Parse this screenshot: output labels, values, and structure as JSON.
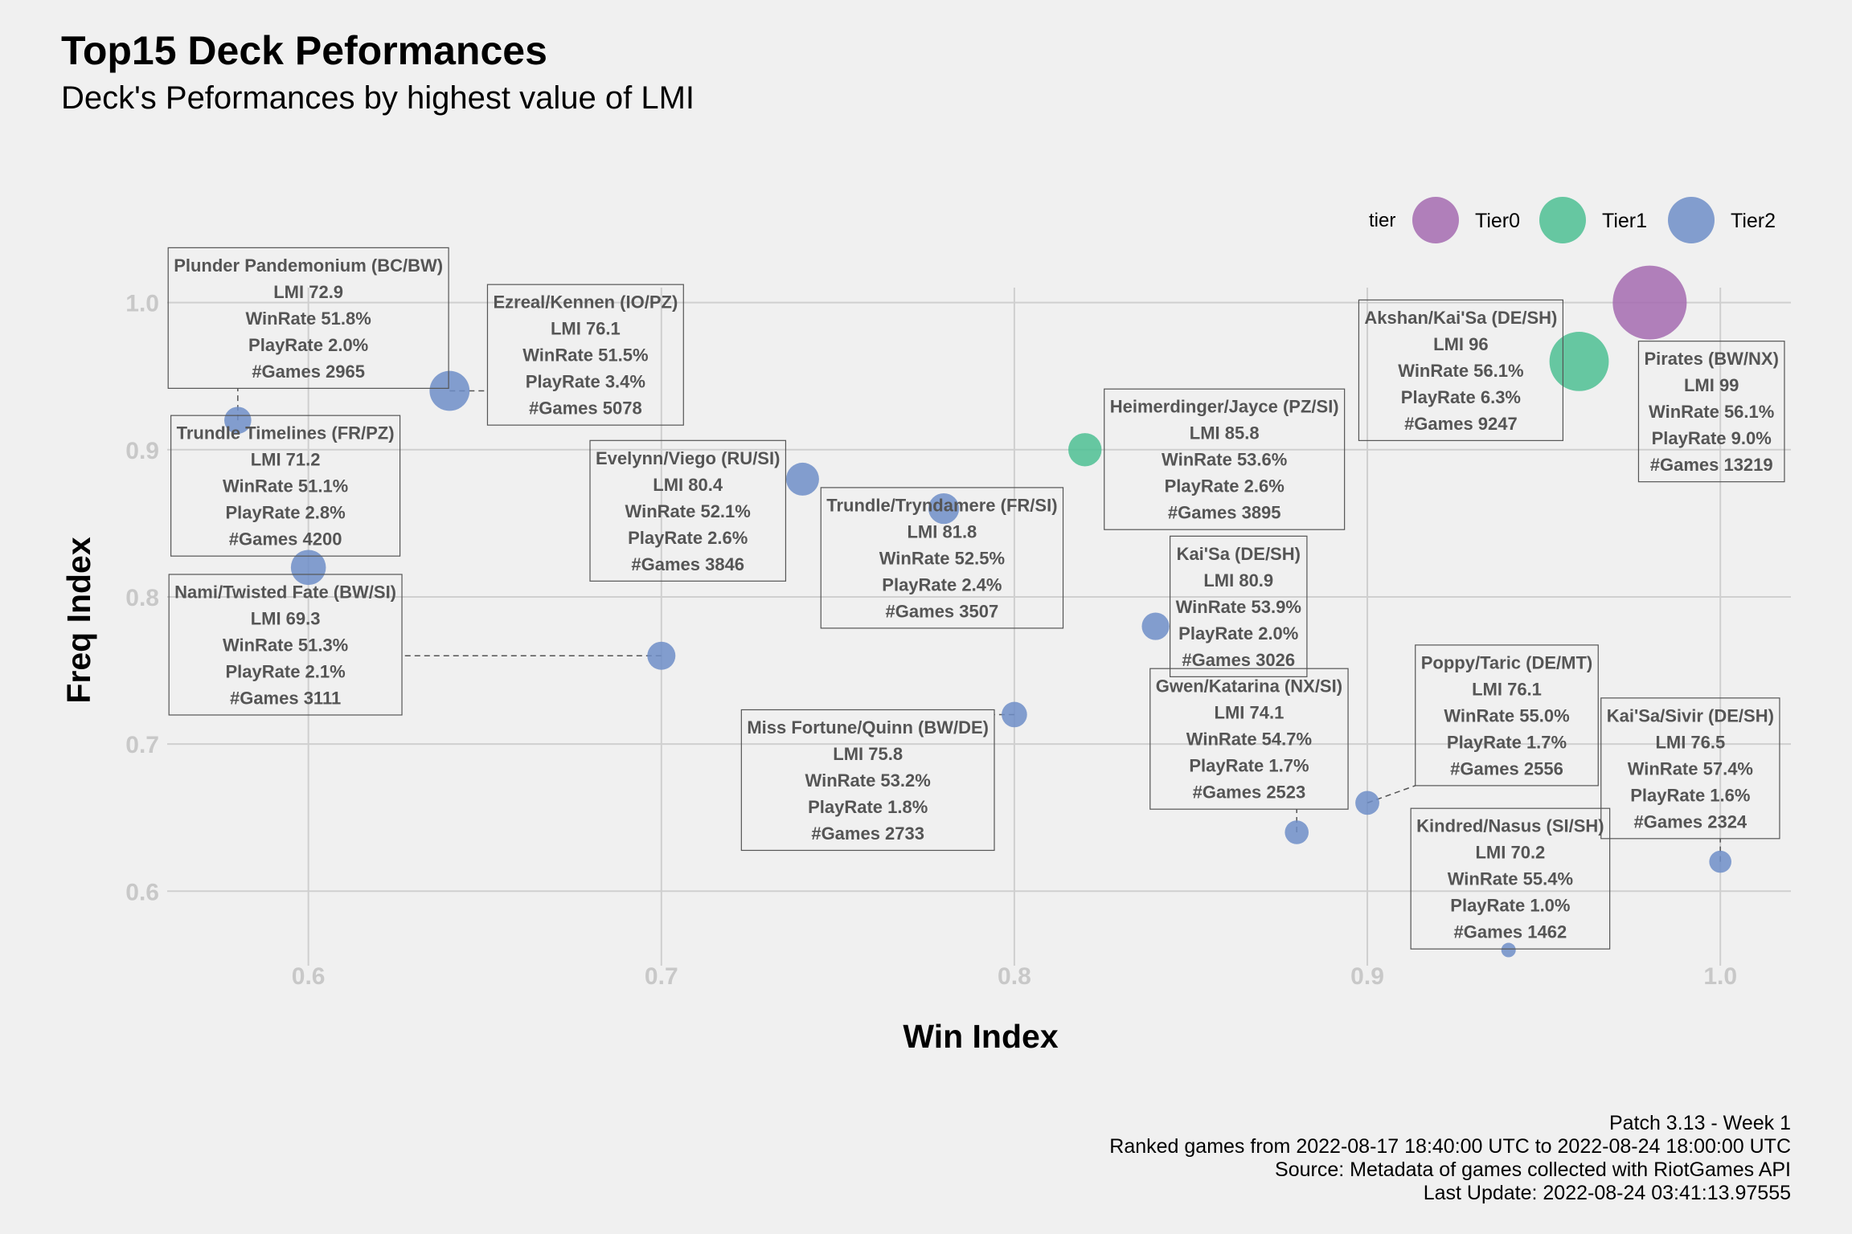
{
  "header": {
    "title": "Top15 Deck Peformances",
    "subtitle": "Deck's Peformances by highest value of LMI"
  },
  "caption": {
    "line1": "Patch 3.13 - Week 1",
    "line2": "Ranked games from 2022-08-17 18:40:00 UTC to 2022-08-24 18:00:00 UTC",
    "line3": "Source: Metadata of games collected with RiotGames API",
    "line4": "Last Update: 2022-08-24 03:41:13.97555"
  },
  "colors": {
    "Tier0": "#a46bb0",
    "Tier1": "#4dbf93",
    "Tier2": "#6e8ec8",
    "background": "#f0f0f0",
    "grid": "#cfcfcf"
  },
  "chart_data": {
    "type": "scatter",
    "title": "Top15 Deck Peformances",
    "subtitle": "Deck's Peformances by highest value of LMI",
    "xlabel": "Win Index",
    "ylabel": "Freq Index",
    "xlim": [
      0.56,
      1.02
    ],
    "ylim": [
      0.545,
      1.02
    ],
    "x_ticks": [
      0.6,
      0.7,
      0.8,
      0.9,
      1.0
    ],
    "x_tick_labels": [
      "0.6",
      "0.7",
      "0.8",
      "0.9",
      "1.0"
    ],
    "y_ticks": [
      0.6,
      0.7,
      0.8,
      0.9,
      1.0
    ],
    "y_tick_labels": [
      "0.6",
      "0.7",
      "0.8",
      "0.9",
      "1.0"
    ],
    "grid": true,
    "size_variable": "#Games",
    "legend": {
      "title": "tier",
      "position": "top-right",
      "entries": [
        "Tier0",
        "Tier1",
        "Tier2"
      ]
    },
    "points": [
      {
        "deck": "Pirates (BW/NX)",
        "x": 0.98,
        "y": 1.0,
        "tier": "Tier0",
        "lmi": "99",
        "winrate": "56.1%",
        "playrate": "9.0%",
        "games": "13219",
        "lx": 0.9975,
        "ly": 0.926
      },
      {
        "deck": "Akshan/Kai'Sa (DE/SH)",
        "x": 0.96,
        "y": 0.96,
        "tier": "Tier1",
        "lmi": "96",
        "winrate": "56.1%",
        "playrate": "6.3%",
        "games": "9247",
        "lx": 0.9265,
        "ly": 0.954
      },
      {
        "deck": "Heimerdinger/Jayce (PZ/SI)",
        "x": 0.82,
        "y": 0.9,
        "tier": "Tier1",
        "lmi": "85.8",
        "winrate": "53.6%",
        "playrate": "2.6%",
        "games": "3895",
        "lx": 0.8595,
        "ly": 0.8935
      },
      {
        "deck": "Trundle/Tryndamere (FR/SI)",
        "x": 0.78,
        "y": 0.86,
        "tier": "Tier2",
        "lmi": "81.8",
        "winrate": "52.5%",
        "playrate": "2.4%",
        "games": "3507",
        "lx": 0.7795,
        "ly": 0.8265
      },
      {
        "deck": "Kai'Sa (DE/SH)",
        "x": 0.84,
        "y": 0.78,
        "tier": "Tier2",
        "lmi": "80.9",
        "winrate": "53.9%",
        "playrate": "2.0%",
        "games": "3026",
        "lx": 0.8635,
        "ly": 0.7935
      },
      {
        "deck": "Evelynn/Viego (RU/SI)",
        "x": 0.74,
        "y": 0.88,
        "tier": "Tier2",
        "lmi": "80.4",
        "winrate": "52.1%",
        "playrate": "2.6%",
        "games": "3846",
        "lx": 0.7075,
        "ly": 0.8585
      },
      {
        "deck": "Kai'Sa/Sivir (DE/SH)",
        "x": 1.0,
        "y": 0.62,
        "tier": "Tier2",
        "lmi": "76.5",
        "winrate": "57.4%",
        "playrate": "1.6%",
        "games": "2324",
        "lx": 0.9915,
        "ly": 0.6835
      },
      {
        "deck": "Poppy/Taric (DE/MT)",
        "x": 0.9,
        "y": 0.66,
        "tier": "Tier2",
        "lmi": "76.1",
        "winrate": "55.0%",
        "playrate": "1.7%",
        "games": "2556",
        "lx": 0.9395,
        "ly": 0.7195
      },
      {
        "deck": "Ezreal/Kennen (IO/PZ)",
        "x": 0.64,
        "y": 0.94,
        "tier": "Tier2",
        "lmi": "76.1",
        "winrate": "51.5%",
        "playrate": "3.4%",
        "games": "5078",
        "lx": 0.6785,
        "ly": 0.9645
      },
      {
        "deck": "Miss Fortune/Quinn (BW/DE)",
        "x": 0.8,
        "y": 0.72,
        "tier": "Tier2",
        "lmi": "75.8",
        "winrate": "53.2%",
        "playrate": "1.8%",
        "games": "2733",
        "lx": 0.7585,
        "ly": 0.6755
      },
      {
        "deck": "Gwen/Katarina (NX/SI)",
        "x": 0.88,
        "y": 0.64,
        "tier": "Tier2",
        "lmi": "74.1",
        "winrate": "54.7%",
        "playrate": "1.7%",
        "games": "2523",
        "lx": 0.8665,
        "ly": 0.7035
      },
      {
        "deck": "Plunder Pandemonium (BC/BW)",
        "x": 0.58,
        "y": 0.92,
        "tier": "Tier2",
        "lmi": "72.9",
        "winrate": "51.8%",
        "playrate": "2.0%",
        "games": "2965",
        "lx": 0.6,
        "ly": 0.9895
      },
      {
        "deck": "Trundle Timelines (FR/PZ)",
        "x": 0.6,
        "y": 0.82,
        "tier": "Tier2",
        "lmi": "71.2",
        "winrate": "51.1%",
        "playrate": "2.8%",
        "games": "4200",
        "lx": 0.5935,
        "ly": 0.8755
      },
      {
        "deck": "Kindred/Nasus (SI/SH)",
        "x": 0.94,
        "y": 0.56,
        "tier": "Tier2",
        "lmi": "70.2",
        "winrate": "55.4%",
        "playrate": "1.0%",
        "games": "1462",
        "lx": 0.9405,
        "ly": 0.6085
      },
      {
        "deck": "Nami/Twisted Fate (BW/SI)",
        "x": 0.7,
        "y": 0.76,
        "tier": "Tier2",
        "lmi": "69.3",
        "winrate": "51.3%",
        "playrate": "2.1%",
        "games": "3111",
        "lx": 0.5935,
        "ly": 0.7675
      }
    ]
  }
}
